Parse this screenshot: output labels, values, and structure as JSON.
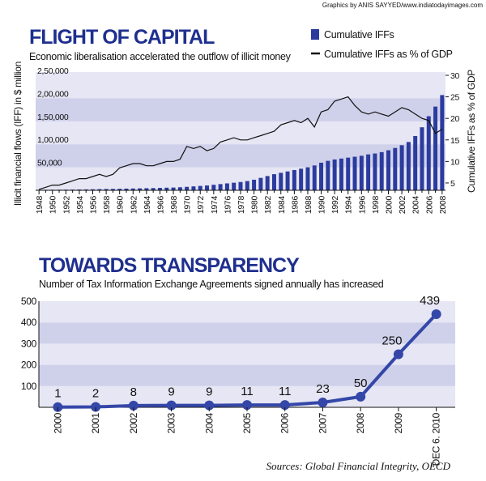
{
  "credit": "Graphics by ANIS SAYYED/www.indiatodayimages.com",
  "source": "Sources: Global Financial Integrity, OECD",
  "chart_data": [
    {
      "type": "bar_line",
      "title": "FLIGHT OF CAPITAL",
      "subtitle": "Economic liberalisation accelerated the outflow of illicit money",
      "y_label": "Illicit financial flows (IFF) in $ million",
      "y2_label": "Cumulative IFFs as % of GDP",
      "categories": [
        "1948",
        null,
        "1950",
        null,
        "1952",
        null,
        "1954",
        null,
        "1956",
        null,
        "1958",
        null,
        "1960",
        null,
        "1962",
        null,
        "1964",
        null,
        "1966",
        null,
        "1968",
        null,
        "1970",
        null,
        "1972",
        null,
        "1974",
        null,
        "1976",
        null,
        "1978",
        null,
        "1980",
        null,
        "1982",
        null,
        "1984",
        null,
        "1986",
        null,
        "1988",
        null,
        "1990",
        null,
        "1992",
        null,
        "1994",
        null,
        "1996",
        null,
        "1998",
        null,
        "2000",
        null,
        "2002",
        null,
        "2004",
        null,
        "2006",
        null,
        "2008"
      ],
      "series": [
        {
          "name": "Cumulative IFFs",
          "color": "#2b3b9e",
          "values": [
            1000,
            1100,
            1200,
            1300,
            1400,
            1500,
            1700,
            1900,
            2200,
            2500,
            2800,
            3000,
            3300,
            3600,
            3900,
            4200,
            4500,
            4800,
            5200,
            5600,
            6000,
            6600,
            7500,
            8500,
            9500,
            10500,
            12000,
            13500,
            15000,
            16500,
            18000,
            20000,
            23000,
            27000,
            31000,
            35000,
            38000,
            41000,
            44000,
            47000,
            50000,
            54000,
            60000,
            64000,
            67000,
            69000,
            71000,
            73000,
            75000,
            78000,
            80000,
            83000,
            87000,
            92000,
            98000,
            105000,
            118000,
            137000,
            161000,
            182000,
            207000
          ]
        },
        {
          "name": "Cumulative IFFs as % of GDP",
          "color": "#111111",
          "axis": "y2",
          "values": [
            3.5,
            4,
            4.5,
            4.5,
            5,
            5.5,
            6,
            6,
            6.5,
            7,
            6.5,
            7,
            8.5,
            9,
            9.5,
            9.5,
            9,
            9,
            9.5,
            10,
            10,
            10.5,
            13.5,
            13,
            13.5,
            12.5,
            13,
            14.5,
            15,
            15.5,
            15,
            15,
            15.5,
            16,
            16.5,
            17,
            18.5,
            19,
            19.5,
            19,
            20,
            18,
            21.5,
            22,
            24,
            24.5,
            25,
            23,
            21.5,
            21,
            21.5,
            21,
            20.5,
            21.5,
            22.5,
            22,
            21,
            20,
            19.5,
            16.5,
            17.5
          ]
        }
      ],
      "ylim": [
        0,
        250000
      ],
      "yticks": [
        {
          "value": 50000,
          "label": "50,000"
        },
        {
          "value": 100000,
          "label": "1,00,000"
        },
        {
          "value": 150000,
          "label": "1,50,000"
        },
        {
          "value": 200000,
          "label": "2,00,000"
        },
        {
          "value": 250000,
          "label": "2,50,000"
        }
      ],
      "y2lim": [
        3.3,
        30
      ],
      "y2ticks": [
        5,
        10,
        15,
        20,
        25,
        30
      ],
      "grid": "bands"
    },
    {
      "type": "line",
      "title": "TOWARDS TRANSPARENCY",
      "subtitle": "Number of Tax Information Exchange Agreements signed annually has increased",
      "categories": [
        "2000",
        "2001",
        "2002",
        "2003",
        "2004",
        "2005",
        "2006",
        "2007",
        "2008",
        "2009",
        "DEC 6. 2010"
      ],
      "values": [
        1,
        2,
        8,
        9,
        9,
        11,
        11,
        23,
        50,
        250,
        439
      ],
      "color": "#3447a8",
      "ylim": [
        0,
        500
      ],
      "yticks": [
        100,
        200,
        300,
        400,
        500
      ],
      "grid": "bands"
    }
  ]
}
